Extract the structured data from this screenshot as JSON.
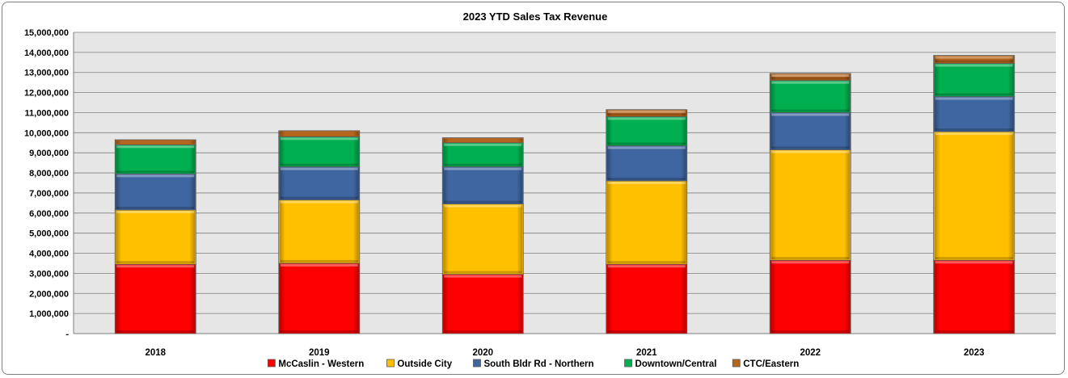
{
  "chart_data": {
    "type": "bar",
    "stacked": true,
    "title": "2023 YTD Sales Tax Revenue",
    "xlabel": "",
    "ylabel": "",
    "categories": [
      "2018",
      "2019",
      "2020",
      "2021",
      "2022",
      "2023"
    ],
    "ylim": [
      0,
      15000000
    ],
    "yticks": [
      0,
      1000000,
      2000000,
      3000000,
      4000000,
      5000000,
      6000000,
      7000000,
      8000000,
      9000000,
      10000000,
      11000000,
      12000000,
      13000000,
      14000000,
      15000000
    ],
    "ytick_labels": [
      "-",
      "1,000,000",
      "2,000,000",
      "3,000,000",
      "4,000,000",
      "5,000,000",
      "6,000,000",
      "7,000,000",
      "8,000,000",
      "9,000,000",
      "10,000,000",
      "11,000,000",
      "12,000,000",
      "13,000,000",
      "14,000,000",
      "15,000,000"
    ],
    "grid": true,
    "plot_background": "#e6e6e6",
    "legend_position": "bottom",
    "series": [
      {
        "name": "McCaslin - Western",
        "color": "#ff0000",
        "values": [
          3450000,
          3500000,
          2950000,
          3450000,
          3650000,
          3650000
        ]
      },
      {
        "name": "Outside City",
        "color": "#ffc000",
        "values": [
          2700000,
          3150000,
          3500000,
          4150000,
          5500000,
          6400000
        ]
      },
      {
        "name": "South Bldr Rd - Northern",
        "color": "#3f66a0",
        "values": [
          1800000,
          1650000,
          1850000,
          1750000,
          1850000,
          1750000
        ]
      },
      {
        "name": "Downtown/Central",
        "color": "#00b050",
        "values": [
          1450000,
          1500000,
          1200000,
          1450000,
          1600000,
          1650000
        ]
      },
      {
        "name": "CTC/Eastern",
        "color": "#b5651d",
        "values": [
          250000,
          300000,
          250000,
          350000,
          350000,
          400000
        ]
      }
    ]
  }
}
